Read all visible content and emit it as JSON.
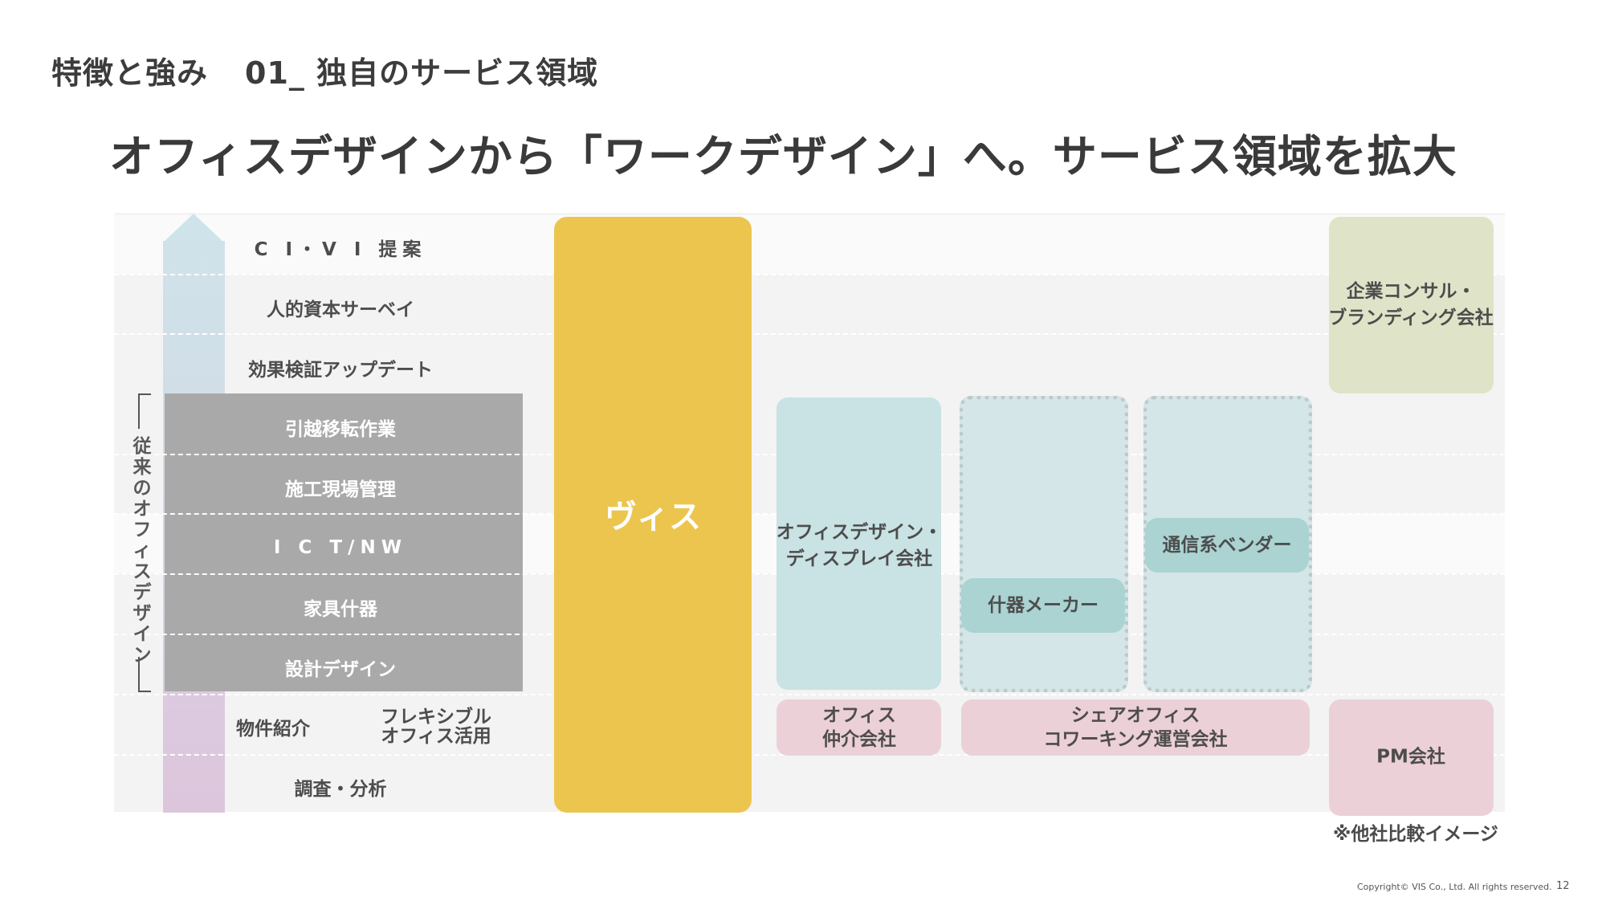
{
  "header": {
    "section": "特徴と強み",
    "subsection": "01_ 独自のサービス領域"
  },
  "title": "オフィスデザインから「ワークデザイン」へ。サービス領域を拡大",
  "rows": [
    "C I・V I 提案",
    "人的資本サーベイ",
    "効果検証アップデート",
    "引越移転作業",
    "施工現場管理",
    "I C T/NW",
    "家具什器",
    "設計デザイン",
    "物件紹介",
    "調査・分析"
  ],
  "row_extra": "フレキシブル\nオフィス活用",
  "bracket_label": "従来のオフィスデザイン",
  "vis_label": "ヴィス",
  "competitors": {
    "office_design": "オフィスデザイン・\nディスプレイ会社",
    "furniture_maker": "什器メーカー",
    "telecom_vendor": "通信系ベンダー",
    "office_broker": "オフィス\n仲介会社",
    "share_office": "シェアオフィス\nコワーキング運営会社",
    "consulting": "企業コンサル・\nブランディング会社",
    "pm": "PM会社"
  },
  "note": "※他社比較イメージ",
  "footer": {
    "copyright": "Copyright© VIS Co., Ltd. All rights reserved.",
    "page": "12"
  },
  "colors": {
    "vis": "#ecc54f",
    "teal": "#c9e2e3",
    "pink": "#ecd0d7",
    "olive": "#dfe4c8",
    "gray_block": "#a9a9a9"
  }
}
